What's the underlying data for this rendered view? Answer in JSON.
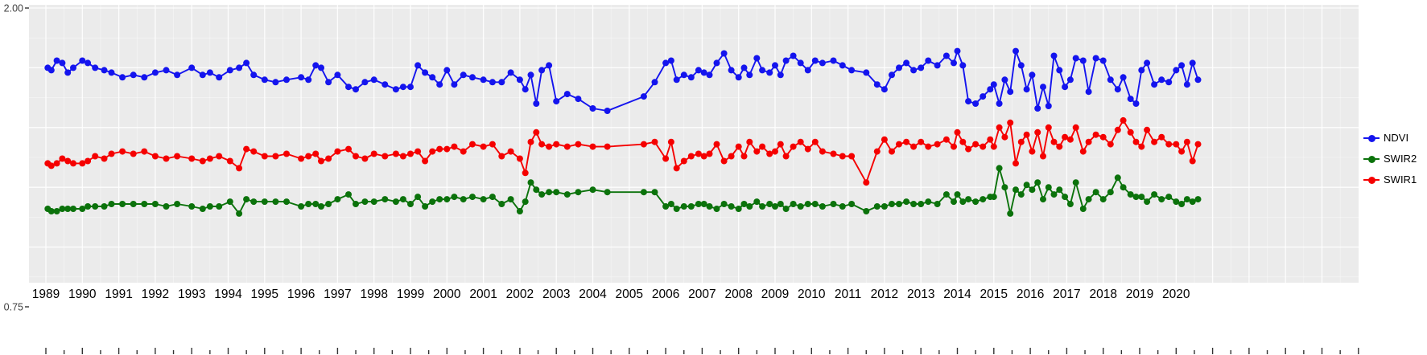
{
  "chart_data": {
    "type": "line",
    "mode": "lines+markers",
    "title": "",
    "xlabel": "",
    "ylabel": "",
    "ylim": [
      0.75,
      2.0
    ],
    "grid": true,
    "legend_position": "right",
    "colors": {
      "panel_bg": "#EBEBEB",
      "grid": "#FFFFFF",
      "tick": "#333333",
      "axis_text": "#404040",
      "x_label_text": "#000000"
    },
    "y_axis": {
      "ticks": [
        {
          "label": "2.00",
          "value": 2.0
        },
        {
          "label": "0.75",
          "value": 0.75
        }
      ]
    },
    "x_ticks": [
      1989,
      1990,
      1991,
      1992,
      1993,
      1994,
      1995,
      1996,
      1997,
      1998,
      1999,
      2000,
      2001,
      2002,
      2003,
      2004,
      2005,
      2006,
      2007,
      2008,
      2009,
      2010,
      2011,
      2012,
      2013,
      2014,
      2015,
      2016,
      2017,
      2018,
      2019,
      2020
    ],
    "x_minor_tick_range": [
      1989,
      2025
    ],
    "x": [
      1989.05,
      1989.15,
      1989.3,
      1989.45,
      1989.6,
      1989.75,
      1990.0,
      1990.15,
      1990.35,
      1990.6,
      1990.8,
      1991.1,
      1991.4,
      1991.7,
      1992.0,
      1992.3,
      1992.6,
      1993.0,
      1993.3,
      1993.5,
      1993.75,
      1994.05,
      1994.3,
      1994.5,
      1994.7,
      1995.0,
      1995.3,
      1995.6,
      1996.0,
      1996.2,
      1996.4,
      1996.55,
      1996.75,
      1997.0,
      1997.3,
      1997.5,
      1997.75,
      1998.0,
      1998.3,
      1998.6,
      1998.8,
      1999.0,
      1999.2,
      1999.4,
      1999.6,
      1999.8,
      2000.0,
      2000.2,
      2000.45,
      2000.7,
      2001.0,
      2001.25,
      2001.5,
      2001.75,
      2002.0,
      2002.15,
      2002.3,
      2002.45,
      2002.6,
      2002.8,
      2003.0,
      2003.3,
      2003.6,
      2004.0,
      2004.4,
      2005.4,
      2005.7,
      2006.0,
      2006.15,
      2006.3,
      2006.5,
      2006.7,
      2006.9,
      2007.05,
      2007.2,
      2007.4,
      2007.6,
      2007.8,
      2008.0,
      2008.15,
      2008.3,
      2008.5,
      2008.65,
      2008.85,
      2009.0,
      2009.15,
      2009.3,
      2009.5,
      2009.7,
      2009.9,
      2010.1,
      2010.3,
      2010.6,
      2010.85,
      2011.1,
      2011.5,
      2011.8,
      2012.0,
      2012.2,
      2012.4,
      2012.6,
      2012.8,
      2013.0,
      2013.2,
      2013.45,
      2013.7,
      2013.9,
      2014.0,
      2014.15,
      2014.3,
      2014.5,
      2014.7,
      2014.9,
      2015.0,
      2015.15,
      2015.3,
      2015.45,
      2015.6,
      2015.75,
      2015.9,
      2016.05,
      2016.2,
      2016.35,
      2016.5,
      2016.65,
      2016.8,
      2016.95,
      2017.1,
      2017.25,
      2017.45,
      2017.6,
      2017.8,
      2018.0,
      2018.2,
      2018.4,
      2018.55,
      2018.75,
      2018.9,
      2019.05,
      2019.2,
      2019.4,
      2019.6,
      2019.8,
      2020.0,
      2020.15,
      2020.3,
      2020.45,
      2020.6
    ],
    "series": [
      {
        "name": "NDVI",
        "color": "#1414EE",
        "values": [
          1.75,
          1.74,
          1.78,
          1.77,
          1.73,
          1.75,
          1.78,
          1.77,
          1.75,
          1.74,
          1.73,
          1.71,
          1.72,
          1.71,
          1.73,
          1.74,
          1.72,
          1.75,
          1.72,
          1.73,
          1.71,
          1.74,
          1.75,
          1.77,
          1.72,
          1.7,
          1.69,
          1.7,
          1.71,
          1.7,
          1.76,
          1.75,
          1.69,
          1.72,
          1.67,
          1.66,
          1.69,
          1.7,
          1.68,
          1.66,
          1.67,
          1.67,
          1.76,
          1.73,
          1.71,
          1.68,
          1.74,
          1.68,
          1.72,
          1.71,
          1.7,
          1.69,
          1.69,
          1.73,
          1.7,
          1.66,
          1.72,
          1.6,
          1.74,
          1.76,
          1.61,
          1.64,
          1.62,
          1.58,
          1.57,
          1.63,
          1.69,
          1.77,
          1.78,
          1.7,
          1.72,
          1.71,
          1.74,
          1.73,
          1.72,
          1.77,
          1.81,
          1.74,
          1.71,
          1.75,
          1.72,
          1.79,
          1.74,
          1.73,
          1.76,
          1.72,
          1.78,
          1.8,
          1.77,
          1.74,
          1.78,
          1.77,
          1.78,
          1.76,
          1.74,
          1.73,
          1.68,
          1.66,
          1.72,
          1.75,
          1.77,
          1.74,
          1.75,
          1.78,
          1.76,
          1.8,
          1.77,
          1.82,
          1.76,
          1.61,
          1.6,
          1.63,
          1.66,
          1.68,
          1.6,
          1.7,
          1.65,
          1.82,
          1.76,
          1.66,
          1.72,
          1.58,
          1.67,
          1.59,
          1.8,
          1.74,
          1.67,
          1.7,
          1.79,
          1.78,
          1.65,
          1.79,
          1.78,
          1.7,
          1.66,
          1.71,
          1.62,
          1.6,
          1.74,
          1.77,
          1.68,
          1.7,
          1.69,
          1.74,
          1.76,
          1.68,
          1.77,
          1.7
        ]
      },
      {
        "name": "SWIR2",
        "color": "#0B720B",
        "values": [
          1.16,
          1.15,
          1.15,
          1.16,
          1.16,
          1.16,
          1.16,
          1.17,
          1.17,
          1.17,
          1.18,
          1.18,
          1.18,
          1.18,
          1.18,
          1.17,
          1.18,
          1.17,
          1.16,
          1.17,
          1.17,
          1.19,
          1.14,
          1.2,
          1.19,
          1.19,
          1.19,
          1.19,
          1.17,
          1.18,
          1.18,
          1.17,
          1.18,
          1.2,
          1.22,
          1.18,
          1.19,
          1.19,
          1.2,
          1.19,
          1.2,
          1.18,
          1.21,
          1.17,
          1.19,
          1.2,
          1.2,
          1.21,
          1.2,
          1.21,
          1.2,
          1.21,
          1.18,
          1.2,
          1.15,
          1.19,
          1.27,
          1.24,
          1.22,
          1.23,
          1.23,
          1.22,
          1.23,
          1.24,
          1.23,
          1.23,
          1.23,
          1.17,
          1.18,
          1.16,
          1.17,
          1.17,
          1.18,
          1.18,
          1.17,
          1.16,
          1.18,
          1.17,
          1.16,
          1.18,
          1.17,
          1.19,
          1.17,
          1.18,
          1.17,
          1.18,
          1.16,
          1.18,
          1.17,
          1.18,
          1.18,
          1.17,
          1.18,
          1.17,
          1.18,
          1.15,
          1.17,
          1.17,
          1.18,
          1.18,
          1.19,
          1.18,
          1.18,
          1.19,
          1.18,
          1.22,
          1.19,
          1.22,
          1.19,
          1.2,
          1.19,
          1.2,
          1.21,
          1.21,
          1.33,
          1.25,
          1.14,
          1.24,
          1.22,
          1.26,
          1.24,
          1.27,
          1.2,
          1.25,
          1.22,
          1.24,
          1.21,
          1.18,
          1.27,
          1.16,
          1.2,
          1.23,
          1.2,
          1.23,
          1.29,
          1.25,
          1.22,
          1.21,
          1.21,
          1.19,
          1.22,
          1.2,
          1.21,
          1.19,
          1.18,
          1.2,
          1.19,
          1.2
        ]
      },
      {
        "name": "SWIR1",
        "color": "#F50000",
        "values": [
          1.35,
          1.34,
          1.35,
          1.37,
          1.36,
          1.35,
          1.35,
          1.36,
          1.38,
          1.37,
          1.39,
          1.4,
          1.39,
          1.4,
          1.38,
          1.37,
          1.38,
          1.37,
          1.36,
          1.37,
          1.38,
          1.36,
          1.33,
          1.41,
          1.4,
          1.38,
          1.38,
          1.39,
          1.37,
          1.38,
          1.39,
          1.36,
          1.37,
          1.4,
          1.41,
          1.38,
          1.37,
          1.39,
          1.38,
          1.39,
          1.38,
          1.39,
          1.4,
          1.36,
          1.4,
          1.41,
          1.41,
          1.42,
          1.4,
          1.43,
          1.42,
          1.43,
          1.38,
          1.4,
          1.37,
          1.31,
          1.44,
          1.48,
          1.43,
          1.42,
          1.43,
          1.42,
          1.43,
          1.42,
          1.42,
          1.43,
          1.44,
          1.37,
          1.44,
          1.33,
          1.36,
          1.38,
          1.39,
          1.38,
          1.39,
          1.43,
          1.36,
          1.38,
          1.42,
          1.38,
          1.44,
          1.4,
          1.42,
          1.39,
          1.4,
          1.43,
          1.38,
          1.42,
          1.44,
          1.41,
          1.44,
          1.4,
          1.39,
          1.38,
          1.38,
          1.27,
          1.4,
          1.45,
          1.4,
          1.43,
          1.44,
          1.42,
          1.44,
          1.42,
          1.43,
          1.45,
          1.42,
          1.48,
          1.44,
          1.41,
          1.43,
          1.42,
          1.45,
          1.42,
          1.5,
          1.46,
          1.52,
          1.35,
          1.44,
          1.47,
          1.4,
          1.48,
          1.38,
          1.5,
          1.44,
          1.42,
          1.46,
          1.45,
          1.5,
          1.4,
          1.44,
          1.47,
          1.46,
          1.43,
          1.49,
          1.53,
          1.48,
          1.44,
          1.42,
          1.49,
          1.44,
          1.46,
          1.43,
          1.43,
          1.4,
          1.44,
          1.36,
          1.43
        ]
      }
    ],
    "legend": [
      {
        "label": "NDVI",
        "color": "#1414EE"
      },
      {
        "label": "SWIR2",
        "color": "#0B720B"
      },
      {
        "label": "SWIR1",
        "color": "#F50000"
      }
    ]
  }
}
